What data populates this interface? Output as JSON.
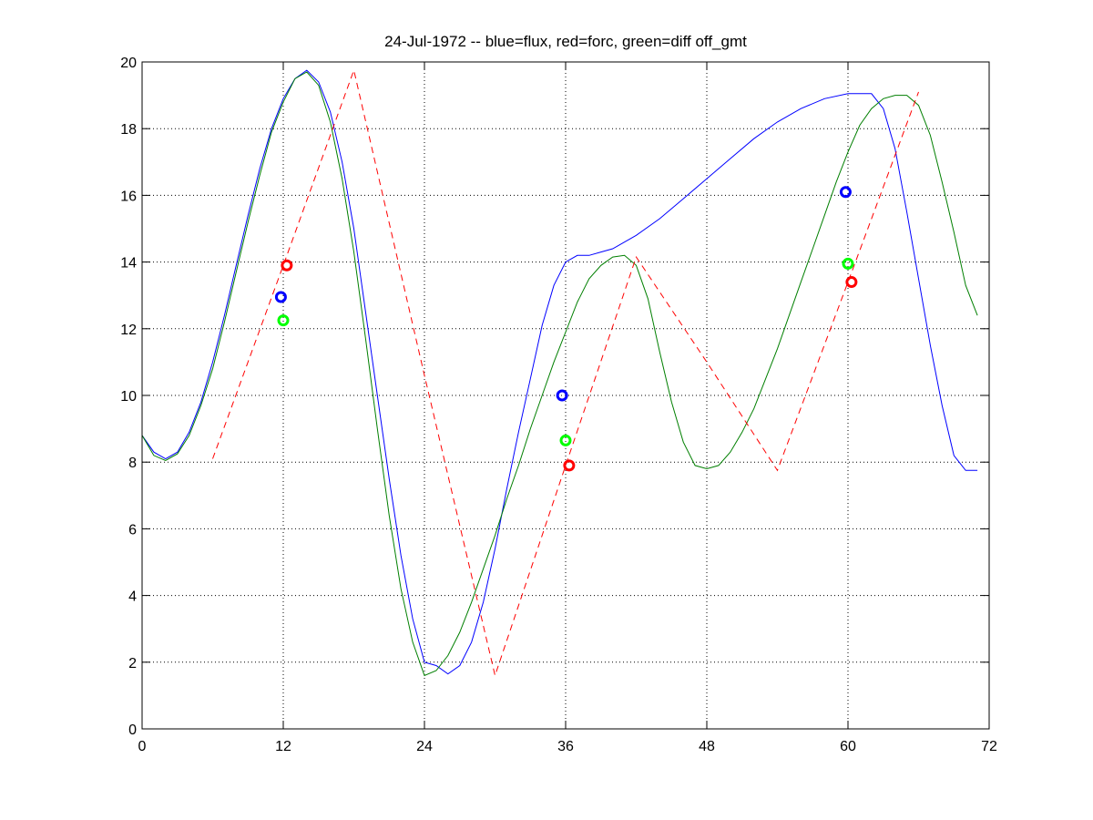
{
  "chart_data": {
    "type": "line",
    "title": "24-Jul-1972 -- blue=flux, red=forc, green=diff off_gmt",
    "xlabel": "",
    "ylabel": "",
    "xlim": [
      0,
      72
    ],
    "ylim": [
      0,
      20
    ],
    "xticks": [
      0,
      12,
      24,
      36,
      48,
      60,
      72
    ],
    "yticks": [
      0,
      2,
      4,
      6,
      8,
      10,
      12,
      14,
      16,
      18,
      20
    ],
    "grid": true,
    "colors": {
      "blue": "#0000ff",
      "red": "#ff0000",
      "green": "#007f00",
      "bright_green": "#00ff00"
    },
    "series": [
      {
        "color": "blue",
        "style": "solid",
        "x": [
          0,
          1,
          2,
          3,
          4,
          5,
          6,
          7,
          8,
          9,
          10,
          11,
          12,
          13,
          14,
          15,
          16,
          17,
          18,
          19,
          20,
          21,
          22,
          23,
          24,
          25,
          26,
          27,
          28,
          29,
          30,
          31,
          32,
          33,
          34,
          35,
          36,
          37,
          38,
          39,
          40,
          42,
          44,
          46,
          48,
          50,
          52,
          54,
          56,
          58,
          60,
          62,
          63,
          64,
          65,
          66,
          67,
          68,
          69,
          70,
          71
        ],
        "y": [
          8.8,
          8.3,
          8.1,
          8.3,
          8.9,
          9.8,
          11.0,
          12.4,
          13.9,
          15.4,
          16.8,
          18.0,
          18.9,
          19.5,
          19.75,
          19.4,
          18.5,
          17.0,
          15.0,
          12.5,
          10.0,
          7.5,
          5.2,
          3.3,
          2.0,
          1.9,
          1.65,
          1.9,
          2.6,
          3.8,
          5.4,
          7.2,
          8.9,
          10.5,
          12.1,
          13.3,
          14.0,
          14.2,
          14.2,
          14.3,
          14.4,
          14.8,
          15.3,
          15.9,
          16.5,
          17.1,
          17.7,
          18.2,
          18.6,
          18.9,
          19.05,
          19.05,
          18.6,
          17.4,
          15.5,
          13.5,
          11.5,
          9.7,
          8.2,
          7.75,
          7.75
        ]
      },
      {
        "color": "green",
        "style": "solid",
        "x": [
          0,
          1,
          2,
          3,
          4,
          5,
          6,
          7,
          8,
          9,
          10,
          11,
          12,
          13,
          14,
          15,
          16,
          17,
          18,
          19,
          20,
          21,
          22,
          23,
          24,
          25,
          26,
          27,
          28,
          29,
          30,
          31,
          32,
          33,
          34,
          35,
          36,
          37,
          38,
          39,
          40,
          41,
          42,
          43,
          44,
          45,
          46,
          47,
          48,
          49,
          50,
          51,
          52,
          53,
          54,
          55,
          56,
          57,
          58,
          59,
          60,
          61,
          62,
          63,
          64,
          65,
          66,
          67,
          68,
          69,
          70,
          71
        ],
        "y": [
          8.8,
          8.2,
          8.05,
          8.25,
          8.8,
          9.7,
          10.8,
          12.2,
          13.7,
          15.2,
          16.6,
          17.9,
          18.8,
          19.5,
          19.7,
          19.3,
          18.2,
          16.5,
          14.3,
          11.7,
          9.0,
          6.4,
          4.2,
          2.6,
          1.6,
          1.75,
          2.2,
          2.9,
          3.8,
          4.8,
          5.8,
          6.9,
          7.9,
          9.0,
          10.0,
          11.0,
          11.9,
          12.8,
          13.5,
          13.9,
          14.15,
          14.2,
          13.9,
          12.9,
          11.3,
          9.8,
          8.6,
          7.9,
          7.8,
          7.9,
          8.3,
          8.9,
          9.6,
          10.5,
          11.4,
          12.4,
          13.4,
          14.4,
          15.4,
          16.4,
          17.3,
          18.1,
          18.6,
          18.9,
          19.0,
          19.0,
          18.7,
          17.8,
          16.4,
          14.9,
          13.3,
          12.4
        ]
      },
      {
        "color": "red",
        "style": "dashed",
        "x": [
          6,
          12,
          18,
          24,
          30,
          36,
          42,
          48,
          54,
          60,
          66
        ],
        "y": [
          8.1,
          13.9,
          19.75,
          10.6,
          1.6,
          7.9,
          14.15,
          11.0,
          7.75,
          13.4,
          19.1
        ]
      }
    ],
    "markers": [
      {
        "color": "blue",
        "x": 11.8,
        "y": 12.95
      },
      {
        "color": "bright_green",
        "x": 12.0,
        "y": 12.25
      },
      {
        "color": "red",
        "x": 12.3,
        "y": 13.9
      },
      {
        "color": "blue",
        "x": 35.7,
        "y": 10.0
      },
      {
        "color": "bright_green",
        "x": 36.0,
        "y": 8.65
      },
      {
        "color": "red",
        "x": 36.3,
        "y": 7.9
      },
      {
        "color": "blue",
        "x": 59.8,
        "y": 16.1
      },
      {
        "color": "bright_green",
        "x": 60.0,
        "y": 13.95
      },
      {
        "color": "red",
        "x": 60.3,
        "y": 13.4
      }
    ]
  }
}
